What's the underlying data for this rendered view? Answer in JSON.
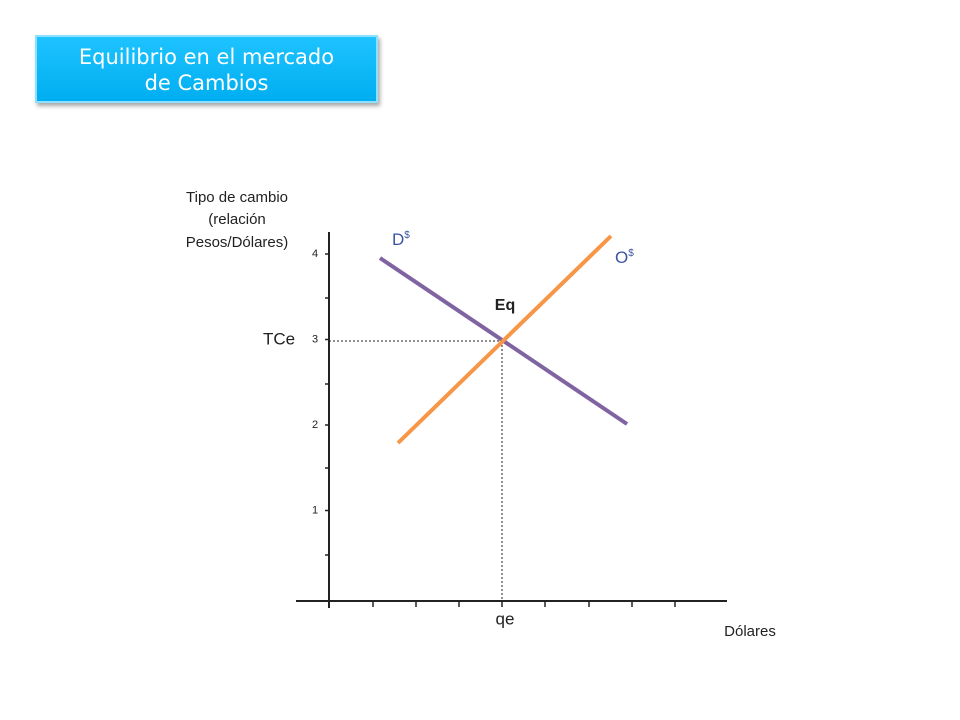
{
  "title": {
    "line1": "Equilibrio en el mercado",
    "line2": "de Cambios"
  },
  "y_axis": {
    "label_lines": [
      "Tipo de cambio",
      "(relación",
      "Pesos/Dólares)"
    ],
    "ticks": [
      1,
      2,
      3,
      4
    ]
  },
  "x_axis": {
    "label": "Dólares"
  },
  "curves": {
    "demand": {
      "letter": "D",
      "sup": "$"
    },
    "supply": {
      "letter": "O",
      "sup": "$"
    }
  },
  "equilibrium": {
    "label": "Eq",
    "price_label": "TCe",
    "quantity_label": "qe"
  }
}
